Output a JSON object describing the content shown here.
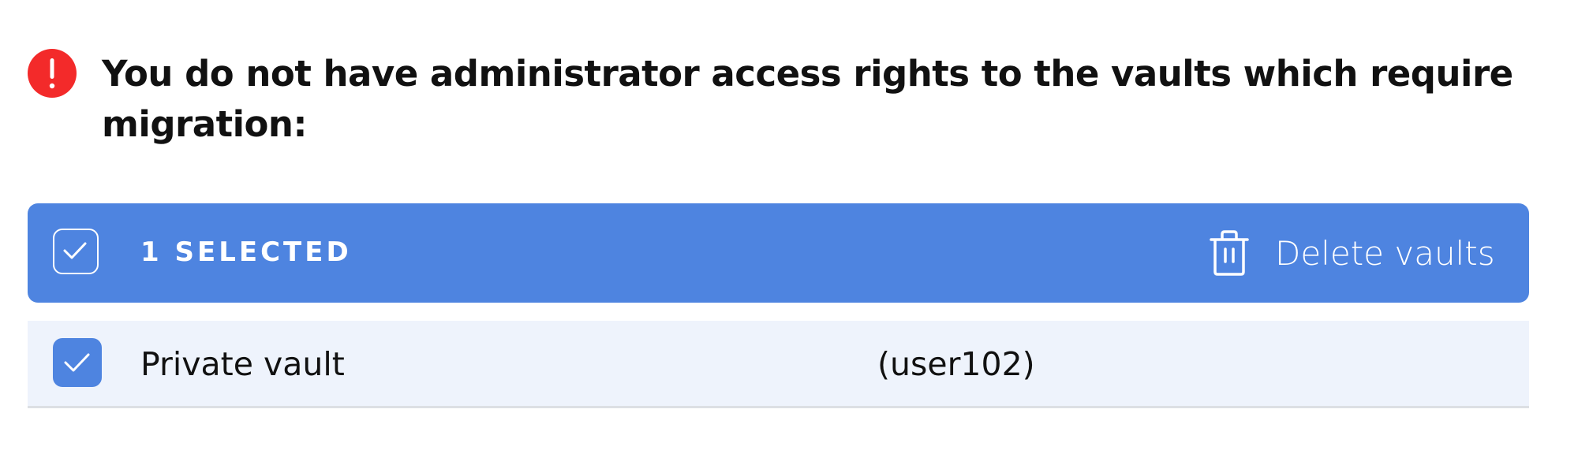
{
  "alert": {
    "icon": "exclamation-circle-icon",
    "color": "#f32a2a",
    "message": "You do not have administrator access rights to the vaults which require migration:"
  },
  "selection_bar": {
    "color": "#4e84e0",
    "selected_label": "1 SELECTED",
    "select_all_checked": true,
    "delete_icon": "trash-icon",
    "delete_label": "Delete vaults"
  },
  "vaults": [
    {
      "name": "Private vault",
      "owner": "(user102)",
      "checked": true
    }
  ]
}
